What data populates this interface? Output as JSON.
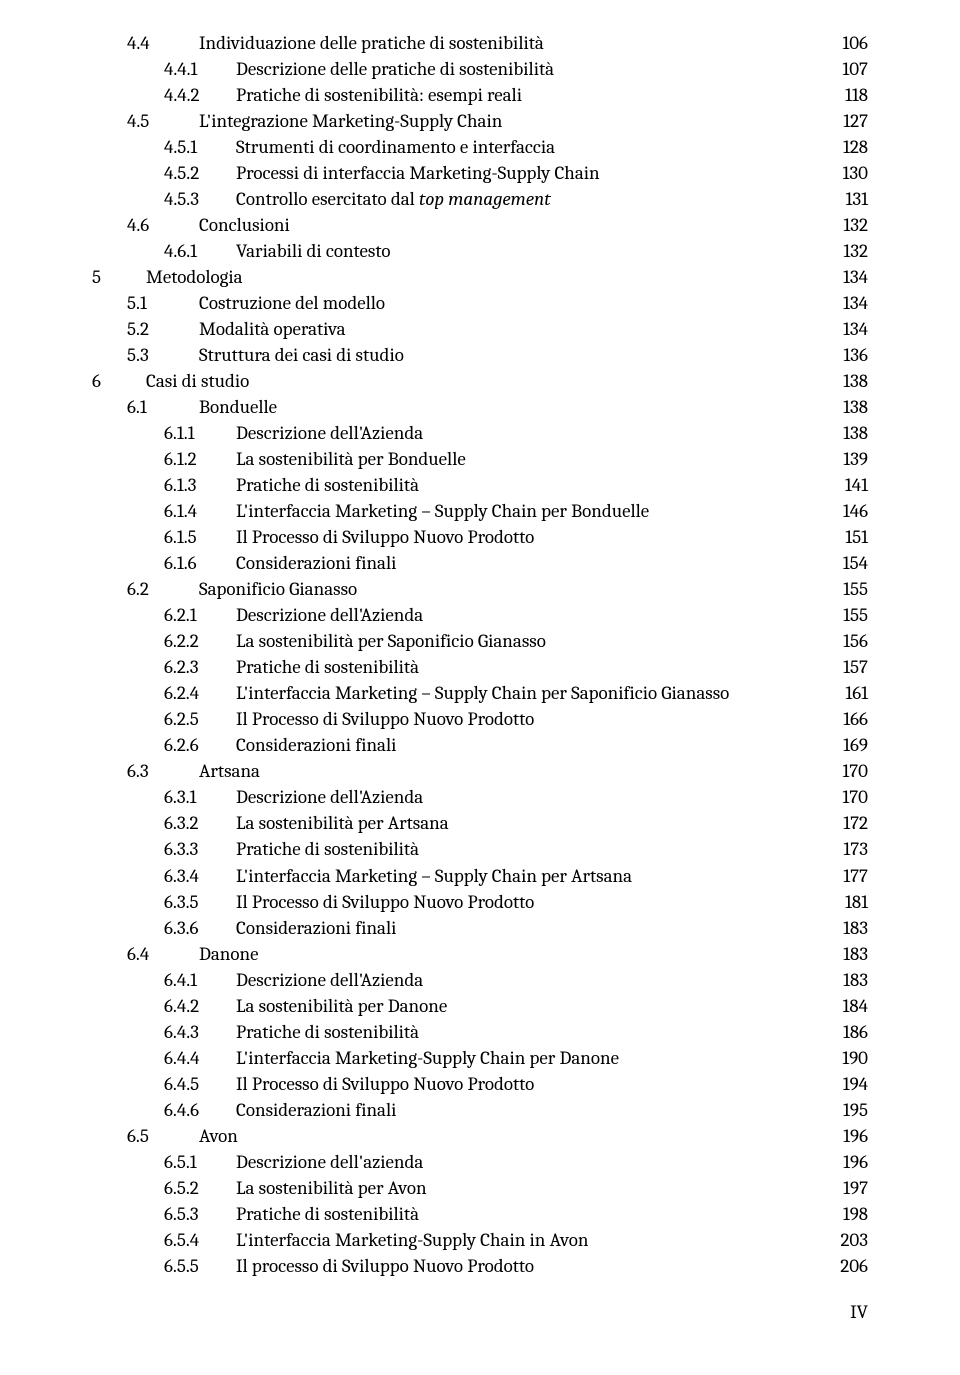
{
  "footer": "IV",
  "entries": [
    {
      "indent": 1,
      "num": "4.4",
      "title": "Individuazione delle pratiche di sostenibilità",
      "page": "106"
    },
    {
      "indent": 2,
      "num": "4.4.1",
      "title": "Descrizione delle pratiche di sostenibilità",
      "page": "107"
    },
    {
      "indent": 2,
      "num": "4.4.2",
      "title": "Pratiche di sostenibilità: esempi reali",
      "page": "118"
    },
    {
      "indent": 1,
      "num": "4.5",
      "title": "L'integrazione Marketing-Supply Chain",
      "page": "127"
    },
    {
      "indent": 2,
      "num": "4.5.1",
      "title": "Strumenti di coordinamento e interfaccia",
      "page": "128"
    },
    {
      "indent": 2,
      "num": "4.5.2",
      "title": "Processi di interfaccia Marketing-Supply Chain",
      "page": "130"
    },
    {
      "indent": 2,
      "num": "4.5.3",
      "title_html": "Controllo esercitato dal <span class=\"italic\">top management</span>",
      "page": "131"
    },
    {
      "indent": 1,
      "num": "4.6",
      "title": "Conclusioni",
      "page": "132"
    },
    {
      "indent": 2,
      "num": "4.6.1",
      "title": "Variabili di contesto",
      "page": "132"
    },
    {
      "indent": 0,
      "num": "5",
      "title": "Metodologia",
      "page": "134"
    },
    {
      "indent": 1,
      "num": "5.1",
      "title": "Costruzione del modello",
      "page": "134"
    },
    {
      "indent": 1,
      "num": "5.2",
      "title": "Modalità operativa",
      "page": "134"
    },
    {
      "indent": 1,
      "num": "5.3",
      "title": "Struttura dei casi di studio",
      "page": "136"
    },
    {
      "indent": 0,
      "num": "6",
      "title": "Casi di studio",
      "page": "138"
    },
    {
      "indent": 1,
      "num": "6.1",
      "title": "Bonduelle",
      "page": "138"
    },
    {
      "indent": 2,
      "num": "6.1.1",
      "title": "Descrizione dell'Azienda",
      "page": "138"
    },
    {
      "indent": 2,
      "num": "6.1.2",
      "title": "La sostenibilità per Bonduelle",
      "page": "139"
    },
    {
      "indent": 2,
      "num": "6.1.3",
      "title": "Pratiche di sostenibilità",
      "page": "141"
    },
    {
      "indent": 2,
      "num": "6.1.4",
      "title": "L'interfaccia Marketing – Supply Chain per Bonduelle",
      "page": "146"
    },
    {
      "indent": 2,
      "num": "6.1.5",
      "title": "Il Processo di Sviluppo Nuovo Prodotto",
      "page": "151"
    },
    {
      "indent": 2,
      "num": "6.1.6",
      "title": "Considerazioni finali",
      "page": "154"
    },
    {
      "indent": 1,
      "num": "6.2",
      "title": "Saponificio Gianasso",
      "page": "155"
    },
    {
      "indent": 2,
      "num": "6.2.1",
      "title": "Descrizione dell'Azienda",
      "page": "155"
    },
    {
      "indent": 2,
      "num": "6.2.2",
      "title": "La sostenibilità per Saponificio Gianasso",
      "page": "156"
    },
    {
      "indent": 2,
      "num": "6.2.3",
      "title": "Pratiche di sostenibilità",
      "page": "157"
    },
    {
      "indent": 2,
      "num": "6.2.4",
      "title": "L'interfaccia Marketing – Supply Chain per Saponificio Gianasso",
      "page": "161"
    },
    {
      "indent": 2,
      "num": "6.2.5",
      "title": "Il Processo di Sviluppo Nuovo Prodotto",
      "page": "166"
    },
    {
      "indent": 2,
      "num": "6.2.6",
      "title": "Considerazioni finali",
      "page": "169"
    },
    {
      "indent": 1,
      "num": "6.3",
      "title": "Artsana",
      "page": "170"
    },
    {
      "indent": 2,
      "num": "6.3.1",
      "title": "Descrizione dell'Azienda",
      "page": "170"
    },
    {
      "indent": 2,
      "num": "6.3.2",
      "title": "La sostenibilità per Artsana",
      "page": "172"
    },
    {
      "indent": 2,
      "num": "6.3.3",
      "title": "Pratiche di sostenibilità",
      "page": "173"
    },
    {
      "indent": 2,
      "num": "6.3.4",
      "title": "L'interfaccia Marketing – Supply Chain per Artsana",
      "page": "177"
    },
    {
      "indent": 2,
      "num": "6.3.5",
      "title": "Il Processo di Sviluppo Nuovo Prodotto",
      "page": "181"
    },
    {
      "indent": 2,
      "num": "6.3.6",
      "title": "Considerazioni finali",
      "page": "183"
    },
    {
      "indent": 1,
      "num": "6.4",
      "title": "Danone",
      "page": "183"
    },
    {
      "indent": 2,
      "num": "6.4.1",
      "title": "Descrizione dell'Azienda",
      "page": "183"
    },
    {
      "indent": 2,
      "num": "6.4.2",
      "title": "La sostenibilità per Danone",
      "page": "184"
    },
    {
      "indent": 2,
      "num": "6.4.3",
      "title": "Pratiche di sostenibilità",
      "page": "186"
    },
    {
      "indent": 2,
      "num": "6.4.4",
      "title": "L'interfaccia Marketing-Supply Chain per Danone",
      "page": "190"
    },
    {
      "indent": 2,
      "num": "6.4.5",
      "title": "Il Processo di Sviluppo Nuovo Prodotto",
      "page": "194"
    },
    {
      "indent": 2,
      "num": "6.4.6",
      "title": "Considerazioni finali",
      "page": "195"
    },
    {
      "indent": 1,
      "num": "6.5",
      "title": "Avon",
      "page": "196"
    },
    {
      "indent": 2,
      "num": "6.5.1",
      "title": "Descrizione dell'azienda",
      "page": "196"
    },
    {
      "indent": 2,
      "num": "6.5.2",
      "title": "La sostenibilità per Avon",
      "page": "197"
    },
    {
      "indent": 2,
      "num": "6.5.3",
      "title": "Pratiche di sostenibilità",
      "page": "198"
    },
    {
      "indent": 2,
      "num": "6.5.4",
      "title": "L'interfaccia Marketing-Supply Chain in Avon",
      "page": "203"
    },
    {
      "indent": 2,
      "num": "6.5.5",
      "title": "Il processo di Sviluppo Nuovo Prodotto",
      "page": "206"
    }
  ]
}
